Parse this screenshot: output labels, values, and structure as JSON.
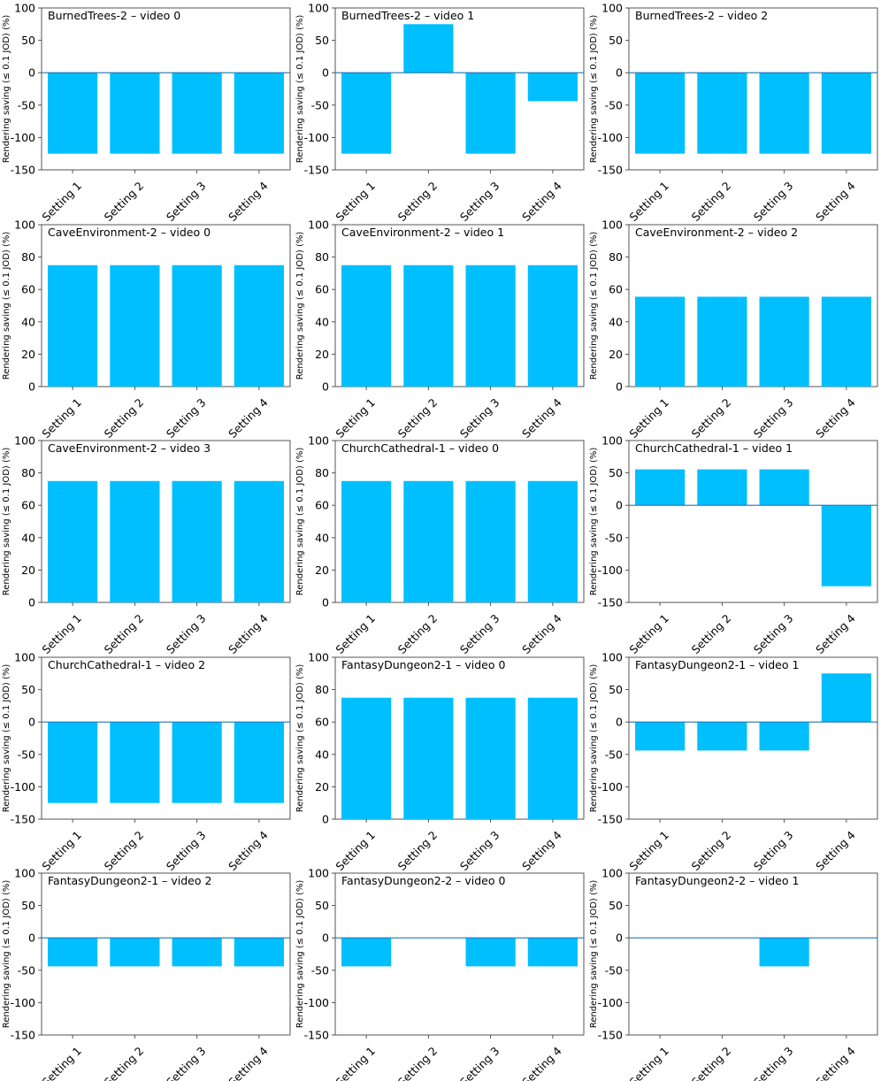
{
  "figure": {
    "ylabel": "Rendering saving (≤ 0.1 JOD) (%)"
  },
  "colors": {
    "bar": "#00BFFF",
    "axis": "#444444",
    "zero_line": "#1f77b4"
  },
  "chart_data": [
    {
      "type": "bar",
      "title": "BurnedTrees-2 – video 0",
      "categories": [
        "Setting 1",
        "Setting 2",
        "Setting 3",
        "Setting 4"
      ],
      "values": [
        -125,
        -125,
        -125,
        -125
      ],
      "ylim": [
        -150,
        100
      ],
      "yticks": [
        100,
        50,
        0,
        -50,
        -100,
        -150
      ],
      "ylabel": "Rendering saving (≤ 0.1 JOD) (%)"
    },
    {
      "type": "bar",
      "title": "BurnedTrees-2 – video 1",
      "categories": [
        "Setting 1",
        "Setting 2",
        "Setting 3",
        "Setting 4"
      ],
      "values": [
        -125,
        75,
        -125,
        -44
      ],
      "ylim": [
        -150,
        100
      ],
      "yticks": [
        100,
        50,
        0,
        -50,
        -100,
        -150
      ],
      "ylabel": "Rendering saving (≤ 0.1 JOD) (%)"
    },
    {
      "type": "bar",
      "title": "BurnedTrees-2 – video 2",
      "categories": [
        "Setting 1",
        "Setting 2",
        "Setting 3",
        "Setting 4"
      ],
      "values": [
        -125,
        -125,
        -125,
        -125
      ],
      "ylim": [
        -150,
        100
      ],
      "yticks": [
        100,
        50,
        0,
        -50,
        -100,
        -150
      ],
      "ylabel": "Rendering saving (≤ 0.1 JOD) (%)"
    },
    {
      "type": "bar",
      "title": "CaveEnvironment-2 – video 0",
      "categories": [
        "Setting 1",
        "Setting 2",
        "Setting 3",
        "Setting 4"
      ],
      "values": [
        75,
        75,
        75,
        75
      ],
      "ylim": [
        0,
        100
      ],
      "yticks": [
        100,
        80,
        60,
        40,
        20,
        0
      ],
      "ylabel": "Rendering saving (≤ 0.1 JOD) (%)"
    },
    {
      "type": "bar",
      "title": "CaveEnvironment-2 – video 1",
      "categories": [
        "Setting 1",
        "Setting 2",
        "Setting 3",
        "Setting 4"
      ],
      "values": [
        75,
        75,
        75,
        75
      ],
      "ylim": [
        0,
        100
      ],
      "yticks": [
        100,
        80,
        60,
        40,
        20,
        0
      ],
      "ylabel": "Rendering saving (≤ 0.1 JOD) (%)"
    },
    {
      "type": "bar",
      "title": "CaveEnvironment-2 – video 2",
      "categories": [
        "Setting 1",
        "Setting 2",
        "Setting 3",
        "Setting 4"
      ],
      "values": [
        55.5,
        55.5,
        55.5,
        55.5
      ],
      "ylim": [
        0,
        100
      ],
      "yticks": [
        100,
        80,
        60,
        40,
        20,
        0
      ],
      "ylabel": "Rendering saving (≤ 0.1 JOD) (%)"
    },
    {
      "type": "bar",
      "title": "CaveEnvironment-2 – video 3",
      "categories": [
        "Setting 1",
        "Setting 2",
        "Setting 3",
        "Setting 4"
      ],
      "values": [
        75,
        75,
        75,
        75
      ],
      "ylim": [
        0,
        100
      ],
      "yticks": [
        100,
        80,
        60,
        40,
        20,
        0
      ],
      "ylabel": "Rendering saving (≤ 0.1 JOD) (%)"
    },
    {
      "type": "bar",
      "title": "ChurchCathedral-1 – video 0",
      "categories": [
        "Setting 1",
        "Setting 2",
        "Setting 3",
        "Setting 4"
      ],
      "values": [
        75,
        75,
        75,
        75
      ],
      "ylim": [
        0,
        100
      ],
      "yticks": [
        100,
        80,
        60,
        40,
        20,
        0
      ],
      "ylabel": "Rendering saving (≤ 0.1 JOD) (%)"
    },
    {
      "type": "bar",
      "title": "ChurchCathedral-1 – video 1",
      "categories": [
        "Setting 1",
        "Setting 2",
        "Setting 3",
        "Setting 4"
      ],
      "values": [
        55.5,
        55.5,
        55.5,
        -125
      ],
      "ylim": [
        -150,
        100
      ],
      "yticks": [
        100,
        50,
        0,
        -50,
        -100,
        -150
      ],
      "ylabel": "Rendering saving (≤ 0.1 JOD) (%)"
    },
    {
      "type": "bar",
      "title": "ChurchCathedral-1 – video 2",
      "categories": [
        "Setting 1",
        "Setting 2",
        "Setting 3",
        "Setting 4"
      ],
      "values": [
        -125,
        -125,
        -125,
        -125
      ],
      "ylim": [
        -150,
        100
      ],
      "yticks": [
        100,
        50,
        0,
        -50,
        -100,
        -150
      ],
      "ylabel": "Rendering saving (≤ 0.1 JOD) (%)"
    },
    {
      "type": "bar",
      "title": "FantasyDungeon2-1 – video 0",
      "categories": [
        "Setting 1",
        "Setting 2",
        "Setting 3",
        "Setting 4"
      ],
      "values": [
        75,
        75,
        75,
        75
      ],
      "ylim": [
        0,
        100
      ],
      "yticks": [
        100,
        80,
        60,
        40,
        20,
        0
      ],
      "ylabel": "Rendering saving (≤ 0.1 JOD) (%)"
    },
    {
      "type": "bar",
      "title": "FantasyDungeon2-1 – video 1",
      "categories": [
        "Setting 1",
        "Setting 2",
        "Setting 3",
        "Setting 4"
      ],
      "values": [
        -44,
        -44,
        -44,
        75
      ],
      "ylim": [
        -150,
        100
      ],
      "yticks": [
        100,
        50,
        0,
        -50,
        -100,
        -150
      ],
      "ylabel": "Rendering saving (≤ 0.1 JOD) (%)"
    },
    {
      "type": "bar",
      "title": "FantasyDungeon2-1 – video 2",
      "categories": [
        "Setting 1",
        "Setting 2",
        "Setting 3",
        "Setting 4"
      ],
      "values": [
        -44,
        -44,
        -44,
        -44
      ],
      "ylim": [
        -150,
        100
      ],
      "yticks": [
        100,
        50,
        0,
        -50,
        -100,
        -150
      ],
      "ylabel": "Rendering saving (≤ 0.1 JOD) (%)"
    },
    {
      "type": "bar",
      "title": "FantasyDungeon2-2 – video 0",
      "categories": [
        "Setting 1",
        "Setting 2",
        "Setting 3",
        "Setting 4"
      ],
      "values": [
        -44,
        0,
        -44,
        -44
      ],
      "ylim": [
        -150,
        100
      ],
      "yticks": [
        100,
        50,
        0,
        -50,
        -100,
        -150
      ],
      "ylabel": "Rendering saving (≤ 0.1 JOD) (%)"
    },
    {
      "type": "bar",
      "title": "FantasyDungeon2-2 – video 1",
      "categories": [
        "Setting 1",
        "Setting 2",
        "Setting 3",
        "Setting 4"
      ],
      "values": [
        0,
        0,
        -44,
        0
      ],
      "ylim": [
        -150,
        100
      ],
      "yticks": [
        100,
        50,
        0,
        -50,
        -100,
        -150
      ],
      "ylabel": "Rendering saving (≤ 0.1 JOD) (%)"
    }
  ]
}
